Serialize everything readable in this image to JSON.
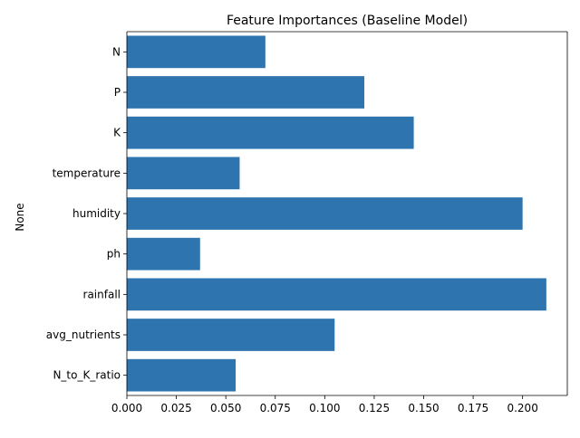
{
  "chart_data": {
    "type": "bar",
    "orientation": "horizontal",
    "title": "Feature Importances (Baseline Model)",
    "xlabel": "",
    "ylabel": "None",
    "categories": [
      "N",
      "P",
      "K",
      "temperature",
      "humidity",
      "ph",
      "rainfall",
      "avg_nutrients",
      "N_to_K_ratio"
    ],
    "values": [
      0.07,
      0.12,
      0.145,
      0.057,
      0.2,
      0.037,
      0.212,
      0.105,
      0.055
    ],
    "xlim": [
      0,
      0.2226
    ],
    "xticks": [
      "0.000",
      "0.025",
      "0.050",
      "0.075",
      "0.100",
      "0.125",
      "0.150",
      "0.175",
      "0.200"
    ],
    "bar_color": "#2e75b0",
    "grid": false
  }
}
